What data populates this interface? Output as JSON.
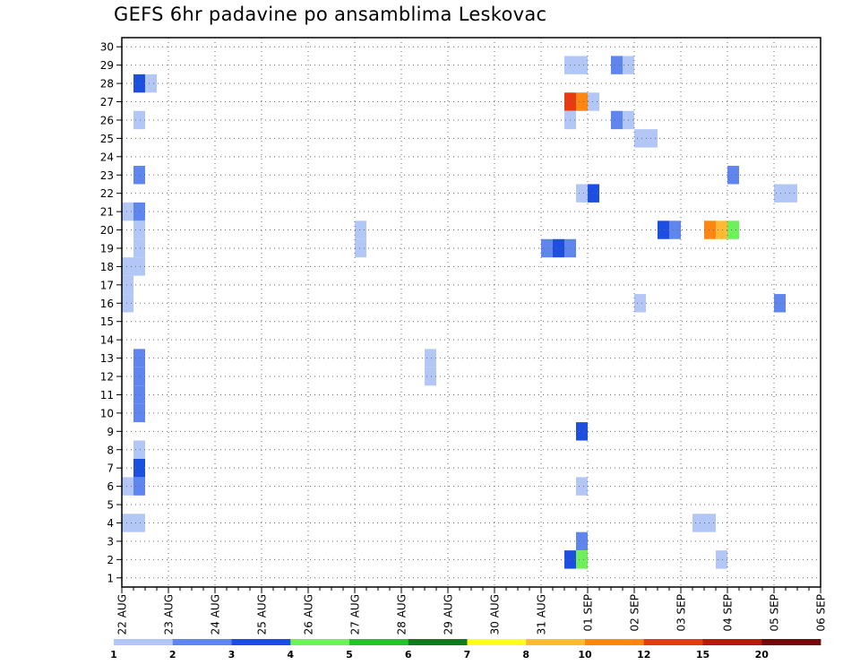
{
  "chart_data": {
    "type": "heatmap",
    "title": "GEFS 6hr padavine po ansamblima Leskovac",
    "xlabel": "",
    "ylabel": "",
    "x_tick_labels": [
      "22 AUG",
      "23 AUG",
      "24 AUG",
      "25 AUG",
      "26 AUG",
      "27 AUG",
      "28 AUG",
      "29 AUG",
      "30 AUG",
      "31 AUG",
      "01 SEP",
      "02 SEP",
      "03 SEP",
      "04 SEP",
      "05 SEP",
      "06 SEP"
    ],
    "y_tick_labels": [
      "1",
      "2",
      "3",
      "4",
      "5",
      "6",
      "7",
      "8",
      "9",
      "10",
      "11",
      "12",
      "13",
      "14",
      "15",
      "16",
      "17",
      "18",
      "19",
      "20",
      "21",
      "22",
      "23",
      "24",
      "25",
      "26",
      "27",
      "28",
      "29",
      "30"
    ],
    "time_step_hours": 6,
    "xlim_days": [
      0,
      15
    ],
    "ylim": [
      0.5,
      30.5
    ],
    "grid": true,
    "colorbar": {
      "levels": [
        "1",
        "2",
        "3",
        "4",
        "5",
        "6",
        "7",
        "8",
        "10",
        "12",
        "15",
        "20"
      ],
      "colors": [
        "#b3c7f7",
        "#5f86ee",
        "#1c4ee2",
        "#6ef05a",
        "#27c22b",
        "#127a1e",
        "#ffff1a",
        "#ffba33",
        "#ff8610",
        "#e83a12",
        "#b31c0d",
        "#700a0a"
      ]
    },
    "cells": [
      {
        "member": 28,
        "day": 0.25,
        "color": "#1c4ee2"
      },
      {
        "member": 28,
        "day": 0.5,
        "color": "#b3c7f7"
      },
      {
        "member": 26,
        "day": 0.25,
        "color": "#b3c7f7"
      },
      {
        "member": 23,
        "day": 0.25,
        "color": "#5f86ee"
      },
      {
        "member": 21,
        "day": 0.0,
        "color": "#b3c7f7"
      },
      {
        "member": 21,
        "day": 0.25,
        "color": "#5f86ee"
      },
      {
        "member": 20,
        "day": 0.25,
        "color": "#b3c7f7"
      },
      {
        "member": 19,
        "day": 0.25,
        "color": "#b3c7f7"
      },
      {
        "member": 18,
        "day": 0.0,
        "color": "#b3c7f7"
      },
      {
        "member": 18,
        "day": 0.25,
        "color": "#b3c7f7"
      },
      {
        "member": 17,
        "day": 0.0,
        "color": "#b3c7f7"
      },
      {
        "member": 16,
        "day": 0.0,
        "color": "#b3c7f7"
      },
      {
        "member": 12,
        "day": 0.25,
        "color": "#5f86ee"
      },
      {
        "member": 13,
        "day": 0.25,
        "color": "#5f86ee"
      },
      {
        "member": 10,
        "day": 0.25,
        "color": "#5f86ee"
      },
      {
        "member": 11,
        "day": 0.25,
        "color": "#5f86ee"
      },
      {
        "member": 8,
        "day": 0.25,
        "color": "#b3c7f7"
      },
      {
        "member": 7,
        "day": 0.25,
        "color": "#1c4ee2"
      },
      {
        "member": 6,
        "day": 0.0,
        "color": "#b3c7f7"
      },
      {
        "member": 6,
        "day": 0.25,
        "color": "#5f86ee"
      },
      {
        "member": 4,
        "day": 0.0,
        "color": "#b3c7f7"
      },
      {
        "member": 4,
        "day": 0.25,
        "color": "#b3c7f7"
      },
      {
        "member": 20,
        "day": 5.0,
        "color": "#b3c7f7"
      },
      {
        "member": 19,
        "day": 5.0,
        "color": "#b3c7f7"
      },
      {
        "member": 12,
        "day": 6.5,
        "color": "#b3c7f7"
      },
      {
        "member": 13,
        "day": 6.5,
        "color": "#b3c7f7"
      },
      {
        "member": 29,
        "day": 9.5,
        "color": "#b3c7f7"
      },
      {
        "member": 29,
        "day": 9.75,
        "color": "#b3c7f7"
      },
      {
        "member": 29,
        "day": 10.5,
        "color": "#5f86ee"
      },
      {
        "member": 29,
        "day": 10.75,
        "color": "#b3c7f7"
      },
      {
        "member": 27,
        "day": 9.5,
        "color": "#e83a12"
      },
      {
        "member": 27,
        "day": 9.75,
        "color": "#ff8610"
      },
      {
        "member": 27,
        "day": 10.0,
        "color": "#b3c7f7"
      },
      {
        "member": 26,
        "day": 9.5,
        "color": "#b3c7f7"
      },
      {
        "member": 26,
        "day": 10.5,
        "color": "#5f86ee"
      },
      {
        "member": 26,
        "day": 10.75,
        "color": "#b3c7f7"
      },
      {
        "member": 25,
        "day": 11.0,
        "color": "#b3c7f7"
      },
      {
        "member": 25,
        "day": 11.25,
        "color": "#b3c7f7"
      },
      {
        "member": 22,
        "day": 9.75,
        "color": "#b3c7f7"
      },
      {
        "member": 22,
        "day": 10.0,
        "color": "#1c4ee2"
      },
      {
        "member": 19,
        "day": 9.0,
        "color": "#5f86ee"
      },
      {
        "member": 19,
        "day": 9.25,
        "color": "#1c4ee2"
      },
      {
        "member": 19,
        "day": 9.5,
        "color": "#5f86ee"
      },
      {
        "member": 20,
        "day": 11.5,
        "color": "#1c4ee2"
      },
      {
        "member": 20,
        "day": 11.75,
        "color": "#5f86ee"
      },
      {
        "member": 16,
        "day": 11.0,
        "color": "#b3c7f7"
      },
      {
        "member": 9,
        "day": 9.75,
        "color": "#1c4ee2"
      },
      {
        "member": 6,
        "day": 9.75,
        "color": "#b3c7f7"
      },
      {
        "member": 3,
        "day": 9.75,
        "color": "#5f86ee"
      },
      {
        "member": 2,
        "day": 9.5,
        "color": "#1c4ee2"
      },
      {
        "member": 2,
        "day": 9.75,
        "color": "#6ef05a"
      },
      {
        "member": 23,
        "day": 13.0,
        "color": "#5f86ee"
      },
      {
        "member": 20,
        "day": 12.5,
        "color": "#ff8610"
      },
      {
        "member": 20,
        "day": 12.75,
        "color": "#ffba33"
      },
      {
        "member": 20,
        "day": 13.0,
        "color": "#6ef05a"
      },
      {
        "member": 22,
        "day": 14.0,
        "color": "#b3c7f7"
      },
      {
        "member": 22,
        "day": 14.25,
        "color": "#b3c7f7"
      },
      {
        "member": 16,
        "day": 14.0,
        "color": "#5f86ee"
      },
      {
        "member": 4,
        "day": 12.25,
        "color": "#b3c7f7"
      },
      {
        "member": 4,
        "day": 12.5,
        "color": "#b3c7f7"
      },
      {
        "member": 2,
        "day": 12.75,
        "color": "#b3c7f7"
      }
    ]
  }
}
